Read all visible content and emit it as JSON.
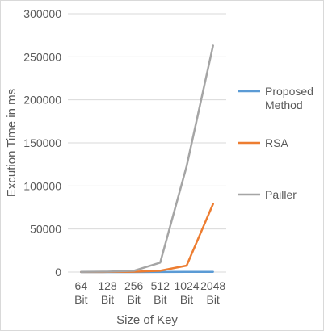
{
  "chart_data": {
    "type": "line",
    "categories": [
      "64 Bit",
      "128 Bit",
      "256 Bit",
      "512 Bit",
      "1024 Bit",
      "2048 Bit"
    ],
    "category_lines": [
      [
        "64",
        "Bit"
      ],
      [
        "128",
        "Bit"
      ],
      [
        "256",
        "Bit"
      ],
      [
        "512",
        "Bit"
      ],
      [
        "1024",
        "Bit"
      ],
      [
        "2048",
        "Bit"
      ]
    ],
    "xlabel": "Size of Key",
    "ylabel": "Excution Time in ms",
    "ylim": [
      0,
      300000
    ],
    "yticks": [
      "0",
      "50000",
      "100000",
      "150000",
      "200000",
      "250000",
      "300000"
    ],
    "grid": true,
    "legend_position": "right",
    "series": [
      {
        "name": "Proposed Method",
        "name_lines": [
          "Proposed",
          "Method"
        ],
        "color": "#5b9bd5",
        "values": [
          10,
          20,
          40,
          80,
          160,
          320
        ]
      },
      {
        "name": "RSA",
        "name_lines": [
          "RSA"
        ],
        "color": "#ed7d31",
        "values": [
          50,
          200,
          400,
          1500,
          7500,
          79000
        ]
      },
      {
        "name": "Pailler",
        "name_lines": [
          "Pailler"
        ],
        "color": "#a5a5a5",
        "values": [
          200,
          500,
          1500,
          11000,
          123000,
          263000
        ]
      }
    ]
  }
}
